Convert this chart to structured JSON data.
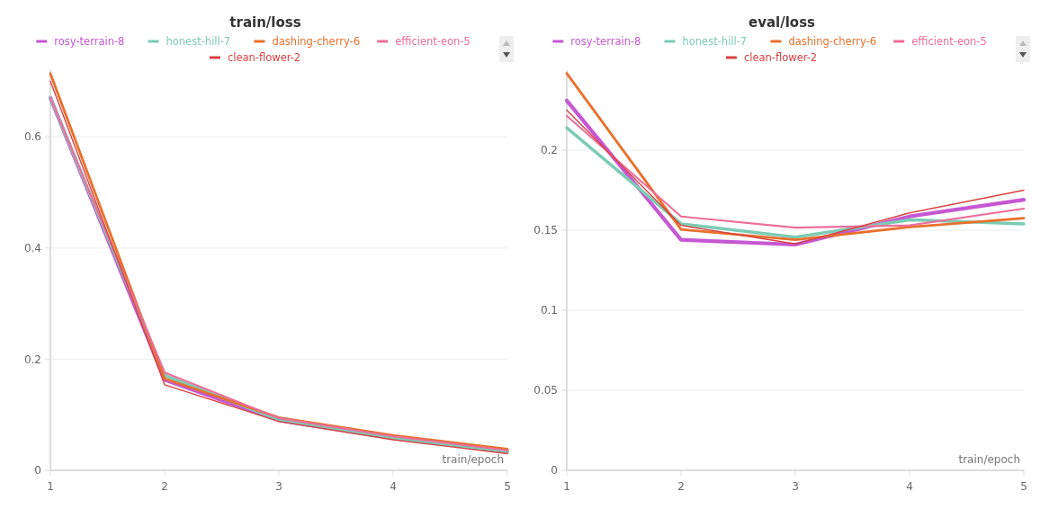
{
  "chart_data": [
    {
      "type": "line",
      "title": "train/loss",
      "xlabel": "train/epoch",
      "x": [
        1,
        2,
        3,
        4,
        5
      ],
      "xlim": [
        1,
        5
      ],
      "xticks": [
        1,
        2,
        3,
        4,
        5
      ],
      "ylim": [
        0,
        0.72
      ],
      "yticks": [
        0,
        0.2,
        0.4,
        0.6
      ],
      "grid": "y",
      "legend": "top",
      "series": [
        {
          "name": "rosy-terrain-8",
          "color": "#c657d2",
          "values": [
            0.67,
            0.163,
            0.09,
            0.058,
            0.034
          ]
        },
        {
          "name": "honest-hill-7",
          "color": "#7ccbb5",
          "values": [
            0.67,
            0.171,
            0.091,
            0.058,
            0.034
          ]
        },
        {
          "name": "dashing-cherry-6",
          "color": "#e8702a",
          "values": [
            0.714,
            0.165,
            0.095,
            0.063,
            0.038
          ]
        },
        {
          "name": "efficient-eon-5",
          "color": "#ec6e9a",
          "values": [
            0.67,
            0.176,
            0.094,
            0.061,
            0.036
          ]
        },
        {
          "name": "clean-flower-2",
          "color": "#da4040",
          "values": [
            0.7,
            0.154,
            0.088,
            0.055,
            0.03
          ]
        }
      ]
    },
    {
      "type": "line",
      "title": "eval/loss",
      "xlabel": "train/epoch",
      "x": [
        1,
        2,
        3,
        4,
        5
      ],
      "xlim": [
        1,
        5
      ],
      "xticks": [
        1,
        2,
        3,
        4,
        5
      ],
      "ylim": [
        0,
        0.25
      ],
      "yticks": [
        0,
        0.05,
        0.1,
        0.15,
        0.2
      ],
      "grid": "y",
      "legend": "top",
      "series": [
        {
          "name": "rosy-terrain-8",
          "color": "#c657d2",
          "values": [
            0.231,
            0.144,
            0.141,
            0.1586,
            0.169
          ]
        },
        {
          "name": "honest-hill-7",
          "color": "#7ccbb5",
          "values": [
            0.214,
            0.154,
            0.1457,
            0.1565,
            0.154
          ]
        },
        {
          "name": "dashing-cherry-6",
          "color": "#e8702a",
          "values": [
            0.248,
            0.1505,
            0.144,
            0.152,
            0.1575
          ]
        },
        {
          "name": "efficient-eon-5",
          "color": "#ec6e9a",
          "values": [
            0.2215,
            0.1586,
            0.1516,
            0.153,
            0.1635
          ]
        },
        {
          "name": "clean-flower-2",
          "color": "#da4040",
          "values": [
            0.225,
            0.153,
            0.1414,
            0.1608,
            0.175
          ]
        }
      ]
    }
  ]
}
